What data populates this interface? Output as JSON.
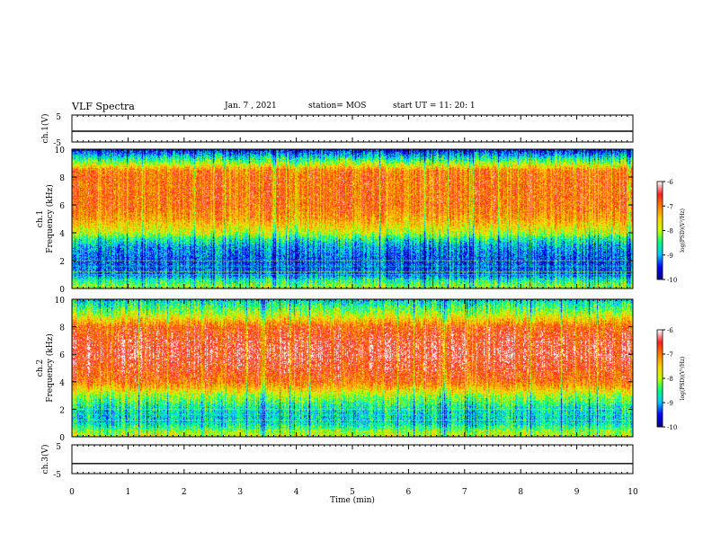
{
  "header": {
    "title": "VLF Spectra",
    "date": "Jan. 7 , 2021",
    "station": "station= MOS",
    "start_ut": "start UT =  11: 20: 1"
  },
  "colors": {
    "spectrogram_scale": [
      "#000080",
      "#0000ff",
      "#00c8ff",
      "#00ff80",
      "#c8ff00",
      "#ffd000",
      "#ff8000",
      "#ff2020",
      "#ffffff"
    ],
    "trace": "#000000"
  },
  "chart_data": [
    {
      "type": "line",
      "name": "ch.1 waveform",
      "ylabel": "ch.1(V)",
      "ylim": [
        -5,
        5
      ],
      "yticks": [
        "5",
        "-5"
      ],
      "x": [
        0,
        10
      ],
      "values": [
        -1.0,
        -1.0
      ],
      "xlim": [
        0,
        10
      ]
    },
    {
      "type": "heatmap",
      "ylabel_channel": "ch.1",
      "ylabel": "Frequency (kHz)",
      "ylim": [
        0,
        10
      ],
      "yticks": [
        "0",
        "2",
        "4",
        "6",
        "8",
        "10"
      ],
      "xlim": [
        0,
        10
      ],
      "colorbar": {
        "label": "log(PSD)(V²/Hz)",
        "range": [
          -10,
          -6
        ],
        "ticks": [
          "-6",
          "-7",
          "-8",
          "-9",
          "-10"
        ]
      },
      "band_profile": {
        "freq_khz": [
          0,
          0.5,
          1,
          2,
          3,
          3.5,
          4,
          5,
          6,
          7,
          8,
          8.5,
          9,
          9.5,
          10
        ],
        "log_psd": [
          -8.0,
          -8.5,
          -9.2,
          -9.3,
          -9.0,
          -8.6,
          -7.9,
          -7.2,
          -6.9,
          -6.9,
          -6.9,
          -7.0,
          -8.0,
          -8.8,
          -9.6
        ]
      }
    },
    {
      "type": "heatmap",
      "ylabel_channel": "ch.2",
      "ylabel": "Frequency (kHz)",
      "ylim": [
        0,
        10
      ],
      "yticks": [
        "0",
        "2",
        "4",
        "6",
        "8",
        "10"
      ],
      "xlim": [
        0,
        10
      ],
      "colorbar": {
        "label": "log(PSD)(V²/Hz)",
        "range": [
          -10,
          -6
        ],
        "ticks": [
          "-6",
          "-7",
          "-8",
          "-9",
          "-10"
        ]
      },
      "band_profile": {
        "freq_khz": [
          0,
          0.5,
          1,
          2,
          3,
          3.5,
          4,
          5,
          6,
          7,
          8,
          8.5,
          9,
          9.5,
          10
        ],
        "log_psd": [
          -7.8,
          -8.2,
          -8.8,
          -8.7,
          -8.0,
          -7.4,
          -6.9,
          -6.6,
          -6.4,
          -6.5,
          -6.8,
          -7.4,
          -8.0,
          -8.4,
          -8.8
        ]
      }
    },
    {
      "type": "line",
      "name": "ch.3 waveform",
      "ylabel": "ch.3(V)",
      "ylim": [
        -5,
        5
      ],
      "yticks": [
        "5",
        "-5"
      ],
      "x": [
        0,
        10
      ],
      "values": [
        -1.5,
        -1.5
      ],
      "xlim": [
        0,
        10
      ]
    }
  ],
  "xaxis": {
    "label": "Time (min)",
    "ticks": [
      "0",
      "1",
      "2",
      "3",
      "4",
      "5",
      "6",
      "7",
      "8",
      "9",
      "10"
    ]
  }
}
